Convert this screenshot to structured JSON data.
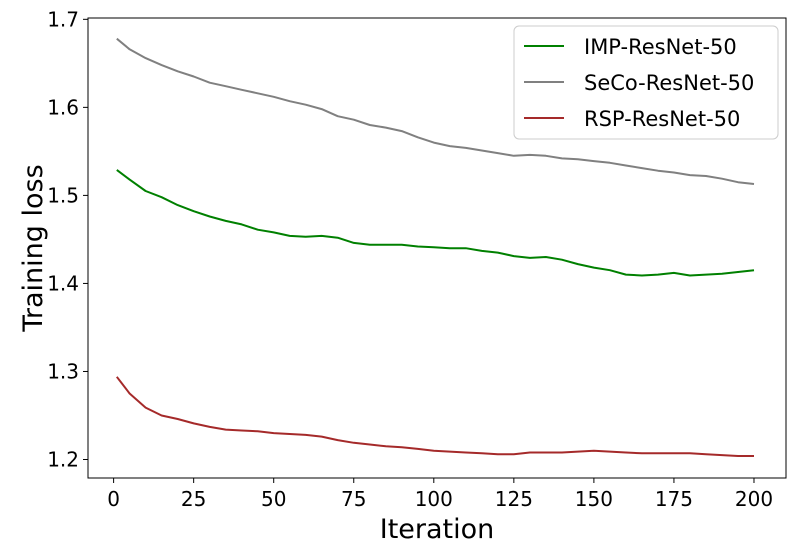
{
  "chart_data": {
    "type": "line",
    "xlabel": "Iteration",
    "ylabel": "Training loss",
    "xlim": [
      -8,
      210
    ],
    "ylim": [
      1.179,
      1.7015
    ],
    "xticks": [
      0,
      25,
      50,
      75,
      100,
      125,
      150,
      175,
      200
    ],
    "xtick_labels": [
      "0",
      "25",
      "50",
      "75",
      "100",
      "125",
      "150",
      "175",
      "200"
    ],
    "yticks": [
      1.2,
      1.3,
      1.4,
      1.5,
      1.6,
      1.7
    ],
    "ytick_labels": [
      "1.2",
      "1.3",
      "1.4",
      "1.5",
      "1.6",
      "1.7"
    ],
    "grid": false,
    "legend_position": "top-right",
    "legend": [
      "IMP-ResNet-50",
      "SeCo-ResNet-50",
      "RSP-ResNet-50"
    ],
    "x": [
      1,
      5,
      10,
      15,
      20,
      25,
      30,
      35,
      40,
      45,
      50,
      55,
      60,
      65,
      70,
      75,
      80,
      85,
      90,
      95,
      100,
      105,
      110,
      115,
      120,
      125,
      130,
      135,
      140,
      145,
      150,
      155,
      160,
      165,
      170,
      175,
      180,
      185,
      190,
      195,
      200
    ],
    "series": [
      {
        "name": "IMP-ResNet-50",
        "color": "#008000",
        "values": [
          1.529,
          1.518,
          1.505,
          1.498,
          1.489,
          1.482,
          1.476,
          1.471,
          1.467,
          1.461,
          1.458,
          1.454,
          1.453,
          1.454,
          1.452,
          1.446,
          1.444,
          1.444,
          1.444,
          1.442,
          1.441,
          1.44,
          1.44,
          1.437,
          1.435,
          1.431,
          1.429,
          1.43,
          1.427,
          1.422,
          1.418,
          1.415,
          1.41,
          1.409,
          1.41,
          1.412,
          1.409,
          1.41,
          1.411,
          1.413,
          1.415
        ]
      },
      {
        "name": "SeCo-ResNet-50",
        "color": "#808080",
        "values": [
          1.678,
          1.666,
          1.656,
          1.648,
          1.641,
          1.635,
          1.628,
          1.624,
          1.62,
          1.616,
          1.612,
          1.607,
          1.603,
          1.598,
          1.59,
          1.586,
          1.58,
          1.577,
          1.573,
          1.566,
          1.56,
          1.556,
          1.554,
          1.551,
          1.548,
          1.545,
          1.546,
          1.545,
          1.542,
          1.541,
          1.539,
          1.537,
          1.534,
          1.531,
          1.528,
          1.526,
          1.523,
          1.522,
          1.519,
          1.515,
          1.513
        ]
      },
      {
        "name": "RSP-ResNet-50",
        "color": "#a52a2a",
        "values": [
          1.294,
          1.275,
          1.259,
          1.25,
          1.246,
          1.241,
          1.237,
          1.234,
          1.233,
          1.232,
          1.23,
          1.229,
          1.228,
          1.226,
          1.222,
          1.219,
          1.217,
          1.215,
          1.214,
          1.212,
          1.21,
          1.209,
          1.208,
          1.207,
          1.206,
          1.206,
          1.208,
          1.208,
          1.208,
          1.209,
          1.21,
          1.209,
          1.208,
          1.207,
          1.207,
          1.207,
          1.207,
          1.206,
          1.205,
          1.204,
          1.204
        ]
      }
    ]
  }
}
